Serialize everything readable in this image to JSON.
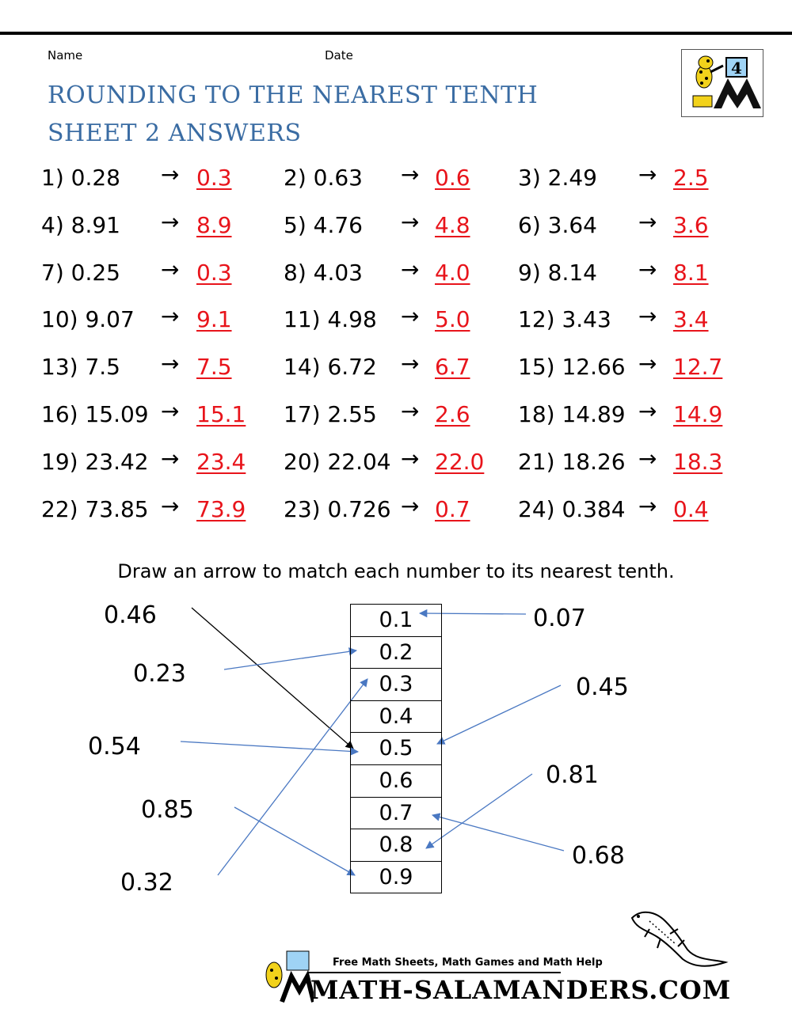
{
  "header": {
    "name_label": "Name",
    "date_label": "Date",
    "title_line1": "ROUNDING TO THE NEAREST TENTH",
    "title_line2": "SHEET 2 ANSWERS",
    "grade_badge": "4"
  },
  "arrow_glyph": "→",
  "questions": [
    {
      "q": "1) 0.28",
      "a": "0.3"
    },
    {
      "q": "2) 0.63",
      "a": "0.6"
    },
    {
      "q": "3) 2.49",
      "a": "2.5"
    },
    {
      "q": "4) 8.91",
      "a": "8.9"
    },
    {
      "q": "5) 4.76",
      "a": "4.8"
    },
    {
      "q": "6) 3.64",
      "a": "3.6"
    },
    {
      "q": "7) 0.25",
      "a": "0.3"
    },
    {
      "q": "8) 4.03",
      "a": "4.0"
    },
    {
      "q": "9) 8.14",
      "a": "8.1"
    },
    {
      "q": "10) 9.07",
      "a": "9.1"
    },
    {
      "q": "11) 4.98",
      "a": "5.0"
    },
    {
      "q": "12) 3.43",
      "a": "3.4"
    },
    {
      "q": "13) 7.5",
      "a": "7.5"
    },
    {
      "q": "14) 6.72",
      "a": "6.7"
    },
    {
      "q": "15) 12.66",
      "a": "12.7"
    },
    {
      "q": "16) 15.09",
      "a": "15.1"
    },
    {
      "q": "17) 2.55",
      "a": "2.6"
    },
    {
      "q": "18) 14.89",
      "a": "14.9"
    },
    {
      "q": "19) 23.42",
      "a": "23.4"
    },
    {
      "q": "20) 22.04",
      "a": "22.0"
    },
    {
      "q": "21) 18.26",
      "a": "18.3"
    },
    {
      "q": "22) 73.85",
      "a": "73.9"
    },
    {
      "q": "23) 0.726",
      "a": "0.7"
    },
    {
      "q": "24) 0.384",
      "a": "0.4"
    }
  ],
  "matching": {
    "instruction": "Draw an arrow to match each number to its nearest tenth.",
    "tenths": [
      "0.1",
      "0.2",
      "0.3",
      "0.4",
      "0.5",
      "0.6",
      "0.7",
      "0.8",
      "0.9"
    ],
    "left_numbers": [
      "0.46",
      "0.23",
      "0.54",
      "0.85",
      "0.32"
    ],
    "right_numbers": [
      "0.07",
      "0.45",
      "0.81",
      "0.68"
    ]
  },
  "footer": {
    "tagline": "Free Math Sheets, Math Games and Math Help",
    "brand": "MATH-SALAMANDERS.COM"
  },
  "colors": {
    "title": "#3a6ca3",
    "answer": "#e8141b",
    "match_arrow": "#4a78c2"
  }
}
